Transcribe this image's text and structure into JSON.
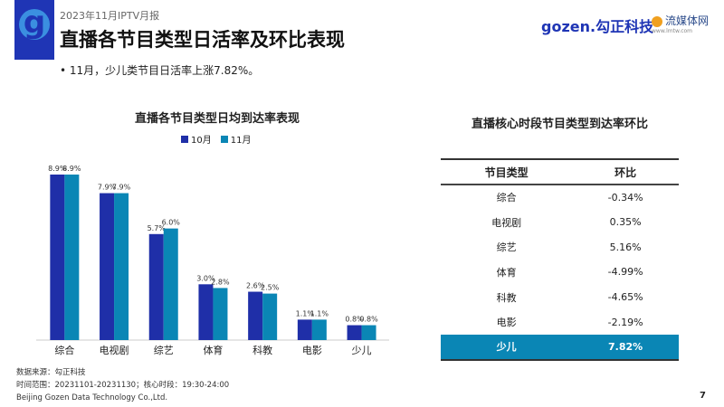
{
  "header": {
    "report": "2023年11月IPTV月报",
    "title": "直播各节目类型日活率及环比表现",
    "bullet": "•  11月，少儿类节目日活率上涨7.82%。",
    "brand1": "gozen.勾正科技",
    "brand2": "流媒体网",
    "brand2_url": "www.lmtw.com"
  },
  "chart_data": {
    "type": "bar",
    "title": "直播各节目类型日均到达率表现",
    "categories": [
      "综合",
      "电视剧",
      "综艺",
      "体育",
      "科教",
      "电影",
      "少儿"
    ],
    "series": [
      {
        "name": "10月",
        "color": "#1f2fa8",
        "values": [
          8.9,
          7.9,
          5.7,
          3.0,
          2.6,
          1.1,
          0.8
        ]
      },
      {
        "name": "11月",
        "color": "#0a86b5",
        "values": [
          8.9,
          7.9,
          6.0,
          2.8,
          2.5,
          1.1,
          0.8
        ]
      }
    ],
    "unit": "%",
    "ylim": [
      0,
      9
    ]
  },
  "table": {
    "title": "直播核心时段节目类型到达率环比",
    "headers": [
      "节目类型",
      "环比"
    ],
    "rows": [
      [
        "综合",
        "-0.34%"
      ],
      [
        "电视剧",
        "0.35%"
      ],
      [
        "综艺",
        "5.16%"
      ],
      [
        "体育",
        "-4.99%"
      ],
      [
        "科教",
        "-4.65%"
      ],
      [
        "电影",
        "-2.19%"
      ],
      [
        "少儿",
        "7.82%"
      ]
    ],
    "highlight_color": "#0a86b5"
  },
  "notes": [
    "数据来源：勾正科技",
    "时间范围：20231101-20231130；核心时段：19:30-24:00",
    "Beijing Gozen Data Technology Co.,Ltd."
  ],
  "page": "7"
}
